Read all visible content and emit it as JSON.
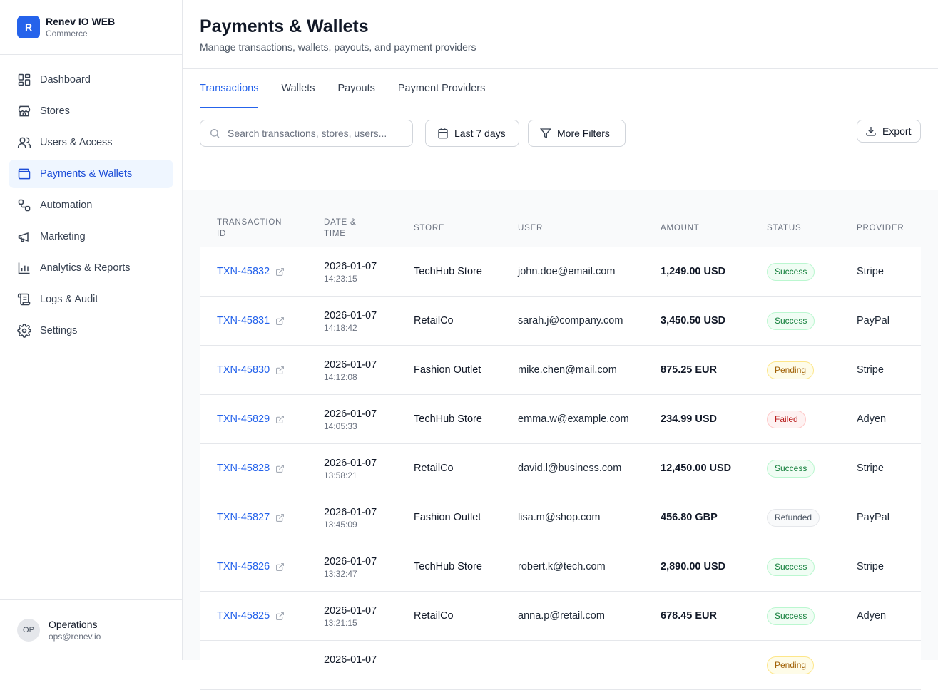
{
  "brand": {
    "logo_letter": "R",
    "name": "Renev IO WEB",
    "subtitle": "Commerce"
  },
  "sidebar": {
    "items": [
      {
        "label": "Dashboard",
        "icon": "dashboard-icon"
      },
      {
        "label": "Stores",
        "icon": "store-icon"
      },
      {
        "label": "Users & Access",
        "icon": "users-icon"
      },
      {
        "label": "Payments & Wallets",
        "icon": "wallet-icon",
        "active": true
      },
      {
        "label": "Automation",
        "icon": "workflow-icon"
      },
      {
        "label": "Marketing",
        "icon": "megaphone-icon"
      },
      {
        "label": "Analytics & Reports",
        "icon": "bar-chart-icon"
      },
      {
        "label": "Logs & Audit",
        "icon": "scroll-icon"
      },
      {
        "label": "Settings",
        "icon": "gear-icon"
      }
    ]
  },
  "user": {
    "initials": "OP",
    "name": "Operations",
    "email": "ops@renev.io"
  },
  "header": {
    "title": "Payments & Wallets",
    "subtitle": "Manage transactions, wallets, payouts, and payment providers"
  },
  "tabs": [
    "Transactions",
    "Wallets",
    "Payouts",
    "Payment Providers"
  ],
  "toolbar": {
    "search_placeholder": "Search transactions, stores, users...",
    "date_label": "Last 7 days",
    "filter_label": "More Filters",
    "export_label": "Export"
  },
  "table": {
    "headers": {
      "id_line1": "TRANSACTION",
      "id_line2": "ID",
      "date_line1": "DATE &",
      "date_line2": "TIME",
      "store": "STORE",
      "user": "USER",
      "amount": "AMOUNT",
      "status": "STATUS",
      "provider": "PROVIDER"
    },
    "rows": [
      {
        "id": "TXN-45832",
        "date": "2026-01-07",
        "time": "14:23:15",
        "store": "TechHub Store",
        "user": "john.doe@email.com",
        "amount": "1,249.00 USD",
        "status": "Success",
        "provider": "Stripe"
      },
      {
        "id": "TXN-45831",
        "date": "2026-01-07",
        "time": "14:18:42",
        "store": "RetailCo",
        "user": "sarah.j@company.com",
        "amount": "3,450.50 USD",
        "status": "Success",
        "provider": "PayPal"
      },
      {
        "id": "TXN-45830",
        "date": "2026-01-07",
        "time": "14:12:08",
        "store": "Fashion Outlet",
        "user": "mike.chen@mail.com",
        "amount": "875.25 EUR",
        "status": "Pending",
        "provider": "Stripe"
      },
      {
        "id": "TXN-45829",
        "date": "2026-01-07",
        "time": "14:05:33",
        "store": "TechHub Store",
        "user": "emma.w@example.com",
        "amount": "234.99 USD",
        "status": "Failed",
        "provider": "Adyen"
      },
      {
        "id": "TXN-45828",
        "date": "2026-01-07",
        "time": "13:58:21",
        "store": "RetailCo",
        "user": "david.l@business.com",
        "amount": "12,450.00 USD",
        "status": "Success",
        "provider": "Stripe"
      },
      {
        "id": "TXN-45827",
        "date": "2026-01-07",
        "time": "13:45:09",
        "store": "Fashion Outlet",
        "user": "lisa.m@shop.com",
        "amount": "456.80 GBP",
        "status": "Refunded",
        "provider": "PayPal"
      },
      {
        "id": "TXN-45826",
        "date": "2026-01-07",
        "time": "13:32:47",
        "store": "TechHub Store",
        "user": "robert.k@tech.com",
        "amount": "2,890.00 USD",
        "status": "Success",
        "provider": "Stripe"
      },
      {
        "id": "TXN-45825",
        "date": "2026-01-07",
        "time": "13:21:15",
        "store": "RetailCo",
        "user": "anna.p@retail.com",
        "amount": "678.45 EUR",
        "status": "Success",
        "provider": "Adyen"
      },
      {
        "id": "",
        "date": "2026-01-07",
        "time": "",
        "store": "",
        "user": "",
        "amount": "",
        "status": "Pending",
        "provider": ""
      }
    ]
  },
  "colors": {
    "accent": "#2563eb",
    "active_bg": "#eff6ff"
  }
}
